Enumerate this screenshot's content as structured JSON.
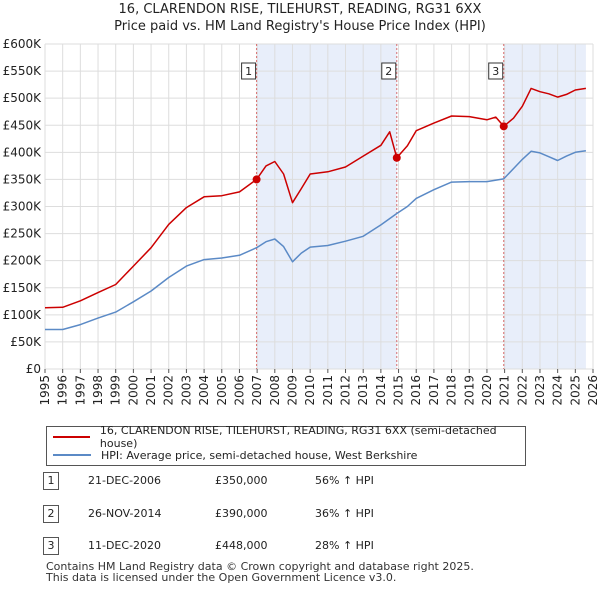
{
  "title_line1": "16, CLARENDON RISE, TILEHURST, READING, RG31 6XX",
  "title_line2": "Price paid vs. HM Land Registry's House Price Index (HPI)",
  "chart_data": {
    "type": "line",
    "xlim": [
      1995,
      2026
    ],
    "ylim": [
      0,
      600000
    ],
    "x_ticks": [
      "1995",
      "1996",
      "1997",
      "1998",
      "1999",
      "2000",
      "2001",
      "2002",
      "2003",
      "2004",
      "2005",
      "2006",
      "2007",
      "2008",
      "2009",
      "2010",
      "2011",
      "2012",
      "2013",
      "2014",
      "2015",
      "2016",
      "2017",
      "2018",
      "2019",
      "2020",
      "2021",
      "2022",
      "2023",
      "2024",
      "2025",
      "2026"
    ],
    "y_ticks": [
      {
        "value": 0,
        "label": "£0"
      },
      {
        "value": 50000,
        "label": "£50K"
      },
      {
        "value": 100000,
        "label": "£100K"
      },
      {
        "value": 150000,
        "label": "£150K"
      },
      {
        "value": 200000,
        "label": "£200K"
      },
      {
        "value": 250000,
        "label": "£250K"
      },
      {
        "value": 300000,
        "label": "£300K"
      },
      {
        "value": 350000,
        "label": "£350K"
      },
      {
        "value": 400000,
        "label": "£400K"
      },
      {
        "value": 450000,
        "label": "£450K"
      },
      {
        "value": 500000,
        "label": "£500K"
      },
      {
        "value": 550000,
        "label": "£550K"
      },
      {
        "value": 600000,
        "label": "£600K"
      }
    ],
    "grid": true,
    "shaded_ranges": [
      [
        2006.97,
        2014.9
      ],
      [
        2020.95,
        2025.6
      ]
    ],
    "series": [
      {
        "name": "16, CLARENDON RISE, TILEHURST, READING, RG31 6XX (semi-detached house)",
        "color": "#cc0000",
        "points": [
          [
            1995.0,
            113000
          ],
          [
            1996.0,
            114000
          ],
          [
            1997.0,
            126000
          ],
          [
            1998.0,
            141000
          ],
          [
            1999.0,
            156000
          ],
          [
            2000.0,
            190000
          ],
          [
            2001.0,
            224000
          ],
          [
            2002.0,
            267000
          ],
          [
            2003.0,
            298000
          ],
          [
            2004.0,
            318000
          ],
          [
            2005.0,
            320000
          ],
          [
            2006.0,
            327000
          ],
          [
            2006.97,
            350000
          ],
          [
            2007.5,
            375000
          ],
          [
            2008.0,
            383000
          ],
          [
            2008.5,
            360000
          ],
          [
            2009.0,
            307000
          ],
          [
            2009.5,
            333000
          ],
          [
            2010.0,
            360000
          ],
          [
            2011.0,
            364000
          ],
          [
            2012.0,
            373000
          ],
          [
            2013.0,
            393000
          ],
          [
            2014.0,
            413000
          ],
          [
            2014.5,
            438000
          ],
          [
            2014.9,
            390000
          ],
          [
            2015.5,
            412000
          ],
          [
            2016.0,
            440000
          ],
          [
            2017.0,
            454000
          ],
          [
            2018.0,
            467000
          ],
          [
            2019.0,
            466000
          ],
          [
            2020.0,
            460000
          ],
          [
            2020.5,
            465000
          ],
          [
            2020.95,
            448000
          ],
          [
            2021.5,
            463000
          ],
          [
            2022.0,
            485000
          ],
          [
            2022.5,
            518000
          ],
          [
            2023.0,
            512000
          ],
          [
            2023.5,
            508000
          ],
          [
            2024.0,
            502000
          ],
          [
            2024.5,
            507000
          ],
          [
            2025.0,
            515000
          ],
          [
            2025.6,
            518000
          ]
        ]
      },
      {
        "name": "HPI: Average price, semi-detached house, West Berkshire",
        "color": "#5b8ac6",
        "points": [
          [
            1995.0,
            73000
          ],
          [
            1996.0,
            73000
          ],
          [
            1997.0,
            82000
          ],
          [
            1998.0,
            94000
          ],
          [
            1999.0,
            105000
          ],
          [
            2000.0,
            124000
          ],
          [
            2001.0,
            144000
          ],
          [
            2002.0,
            169000
          ],
          [
            2003.0,
            190000
          ],
          [
            2004.0,
            202000
          ],
          [
            2005.0,
            205000
          ],
          [
            2006.0,
            210000
          ],
          [
            2006.97,
            224000
          ],
          [
            2007.5,
            235000
          ],
          [
            2008.0,
            240000
          ],
          [
            2008.5,
            226000
          ],
          [
            2009.0,
            198000
          ],
          [
            2009.5,
            214000
          ],
          [
            2010.0,
            225000
          ],
          [
            2011.0,
            228000
          ],
          [
            2012.0,
            236000
          ],
          [
            2013.0,
            245000
          ],
          [
            2014.0,
            266000
          ],
          [
            2014.9,
            287000
          ],
          [
            2015.5,
            300000
          ],
          [
            2016.0,
            315000
          ],
          [
            2017.0,
            331000
          ],
          [
            2018.0,
            345000
          ],
          [
            2019.0,
            346000
          ],
          [
            2020.0,
            346000
          ],
          [
            2020.95,
            351000
          ],
          [
            2021.5,
            370000
          ],
          [
            2022.0,
            387000
          ],
          [
            2022.5,
            402000
          ],
          [
            2023.0,
            399000
          ],
          [
            2023.5,
            392000
          ],
          [
            2024.0,
            385000
          ],
          [
            2024.5,
            393000
          ],
          [
            2025.0,
            400000
          ],
          [
            2025.6,
            403000
          ]
        ]
      }
    ],
    "markers": [
      {
        "label": "1",
        "x": 2006.97,
        "y": 350000
      },
      {
        "label": "2",
        "x": 2014.9,
        "y": 390000
      },
      {
        "label": "3",
        "x": 2020.95,
        "y": 448000
      }
    ]
  },
  "legend": [
    {
      "label": "16, CLARENDON RISE, TILEHURST, READING, RG31 6XX (semi-detached house)",
      "color": "#cc0000"
    },
    {
      "label": "HPI: Average price, semi-detached house, West Berkshire",
      "color": "#5b8ac6"
    }
  ],
  "sales": [
    {
      "num": "1",
      "date": "21-DEC-2006",
      "price": "£350,000",
      "change": "56% ↑ HPI"
    },
    {
      "num": "2",
      "date": "26-NOV-2014",
      "price": "£390,000",
      "change": "36% ↑ HPI"
    },
    {
      "num": "3",
      "date": "11-DEC-2020",
      "price": "£448,000",
      "change": "28% ↑ HPI"
    }
  ],
  "footer": {
    "line1": "Contains HM Land Registry data © Crown copyright and database right 2025.",
    "line2": "This data is licensed under the Open Government Licence v3.0."
  }
}
